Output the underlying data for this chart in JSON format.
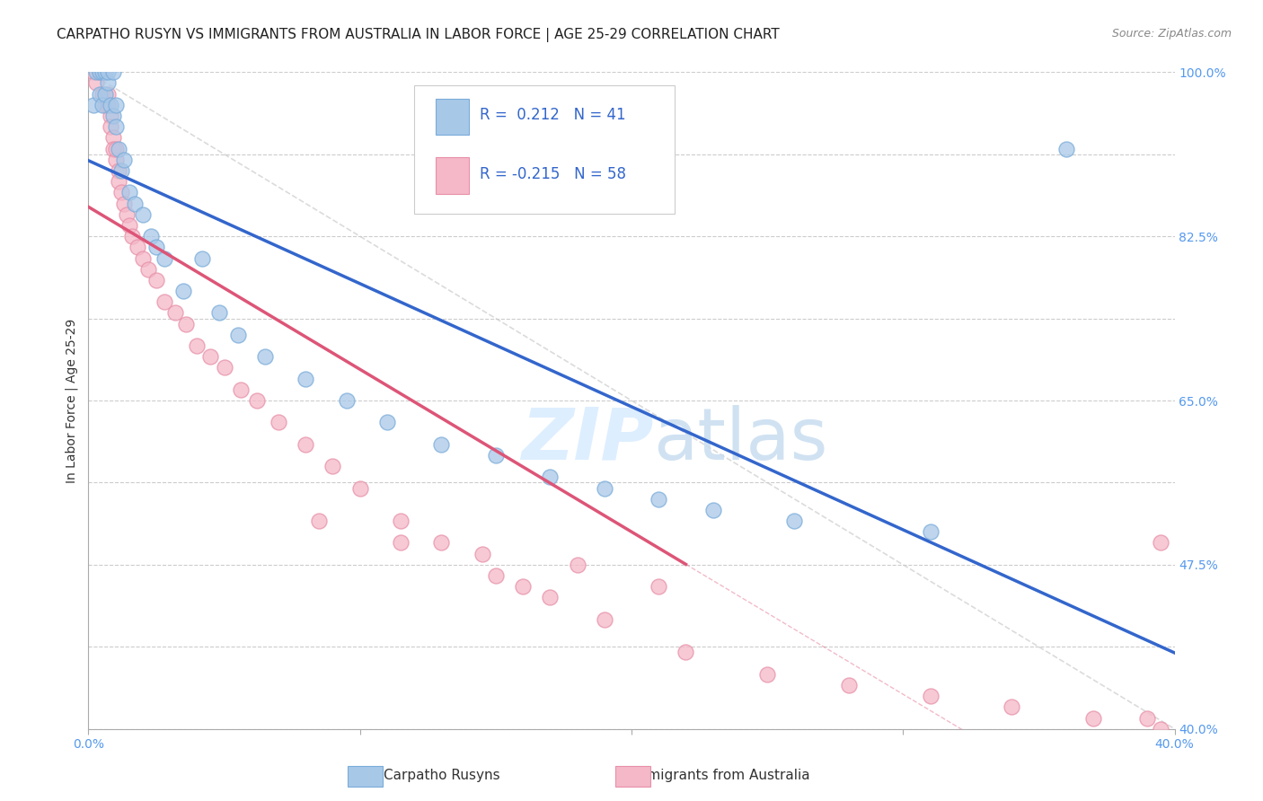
{
  "title": "CARPATHO RUSYN VS IMMIGRANTS FROM AUSTRALIA IN LABOR FORCE | AGE 25-29 CORRELATION CHART",
  "source": "Source: ZipAtlas.com",
  "ylabel": "In Labor Force | Age 25-29",
  "xlim": [
    0.0,
    0.4
  ],
  "ylim": [
    0.4,
    1.0
  ],
  "blue_color": "#a8c8e8",
  "blue_edge_color": "#7aacda",
  "pink_color": "#f4b8c8",
  "pink_edge_color": "#e890a8",
  "blue_line_color": "#3366cc",
  "pink_line_color": "#dd5577",
  "diagonal_color": "#cccccc",
  "R_blue": 0.212,
  "N_blue": 41,
  "R_pink": -0.215,
  "N_pink": 58,
  "background_color": "#ffffff",
  "grid_color": "#cccccc",
  "title_color": "#222222",
  "source_color": "#888888",
  "tick_color": "#5599ee",
  "ylabel_color": "#333333",
  "legend_text_color": "#3366cc",
  "bottom_legend_color": "#333333",
  "watermark_color": "#ddeeff",
  "blue_points_x": [
    0.002,
    0.003,
    0.004,
    0.004,
    0.005,
    0.005,
    0.006,
    0.006,
    0.007,
    0.007,
    0.008,
    0.009,
    0.009,
    0.01,
    0.01,
    0.011,
    0.012,
    0.013,
    0.015,
    0.017,
    0.02,
    0.023,
    0.025,
    0.028,
    0.035,
    0.042,
    0.048,
    0.055,
    0.065,
    0.08,
    0.095,
    0.11,
    0.13,
    0.15,
    0.17,
    0.19,
    0.21,
    0.23,
    0.26,
    0.31,
    0.36
  ],
  "blue_points_y": [
    0.97,
    1.0,
    0.98,
    1.0,
    0.97,
    1.0,
    0.98,
    1.0,
    0.99,
    1.0,
    0.97,
    0.96,
    1.0,
    0.95,
    0.97,
    0.93,
    0.91,
    0.92,
    0.89,
    0.88,
    0.87,
    0.85,
    0.84,
    0.83,
    0.8,
    0.83,
    0.78,
    0.76,
    0.74,
    0.72,
    0.7,
    0.68,
    0.66,
    0.65,
    0.63,
    0.62,
    0.61,
    0.6,
    0.59,
    0.58,
    0.93
  ],
  "pink_points_x": [
    0.002,
    0.003,
    0.004,
    0.005,
    0.005,
    0.006,
    0.006,
    0.007,
    0.007,
    0.008,
    0.008,
    0.009,
    0.009,
    0.01,
    0.01,
    0.011,
    0.011,
    0.012,
    0.013,
    0.014,
    0.015,
    0.016,
    0.018,
    0.02,
    0.022,
    0.025,
    0.028,
    0.032,
    0.036,
    0.04,
    0.045,
    0.05,
    0.056,
    0.062,
    0.07,
    0.08,
    0.09,
    0.1,
    0.115,
    0.13,
    0.15,
    0.17,
    0.19,
    0.22,
    0.25,
    0.28,
    0.31,
    0.34,
    0.37,
    0.39,
    0.395,
    0.395,
    0.18,
    0.21,
    0.085,
    0.115,
    0.145,
    0.16
  ],
  "pink_points_y": [
    1.0,
    0.99,
    1.0,
    0.98,
    1.0,
    0.97,
    1.0,
    0.98,
    0.97,
    0.96,
    0.95,
    0.94,
    0.93,
    0.92,
    0.93,
    0.91,
    0.9,
    0.89,
    0.88,
    0.87,
    0.86,
    0.85,
    0.84,
    0.83,
    0.82,
    0.81,
    0.79,
    0.78,
    0.77,
    0.75,
    0.74,
    0.73,
    0.71,
    0.7,
    0.68,
    0.66,
    0.64,
    0.62,
    0.59,
    0.57,
    0.54,
    0.52,
    0.5,
    0.47,
    0.45,
    0.44,
    0.43,
    0.42,
    0.41,
    0.41,
    0.4,
    0.57,
    0.55,
    0.53,
    0.59,
    0.57,
    0.56,
    0.53
  ]
}
